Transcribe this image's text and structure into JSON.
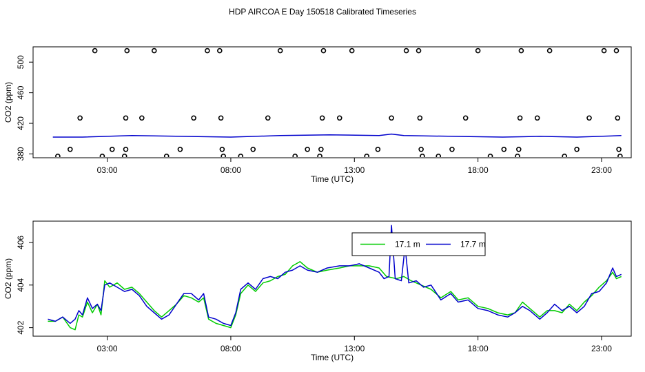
{
  "title": "HDP AIRCOA E  Day 150518  Calibrated Timeseries",
  "colors": {
    "green": "#00cc00",
    "blue": "#0000cc",
    "axis": "#000000"
  },
  "chart_data": [
    {
      "type": "scatter",
      "xlabel": "Time (UTC)",
      "ylabel": "CO2 (ppm)",
      "xlim": [
        0,
        24.2
      ],
      "ylim": [
        375,
        520
      ],
      "x_ticks": [
        3,
        8,
        13,
        18,
        23
      ],
      "x_tick_labels": [
        "03:00",
        "08:00",
        "13:00",
        "18:00",
        "23:00"
      ],
      "y_ticks": [
        380,
        420,
        460,
        500
      ],
      "y_tick_labels": [
        "380",
        "420",
        "460",
        "500"
      ],
      "series": [
        {
          "style": "points-open-circle",
          "points": [
            [
              1.0,
              377
            ],
            [
              1.5,
              386
            ],
            [
              1.9,
              427
            ],
            [
              2.5,
              515
            ],
            [
              2.8,
              377
            ],
            [
              3.2,
              386
            ],
            [
              3.7,
              377
            ],
            [
              3.75,
              386
            ],
            [
              3.75,
              427
            ],
            [
              3.8,
              515
            ],
            [
              4.4,
              427
            ],
            [
              4.9,
              515
            ],
            [
              5.4,
              377
            ],
            [
              5.95,
              386
            ],
            [
              6.5,
              427
            ],
            [
              7.05,
              515
            ],
            [
              7.55,
              515
            ],
            [
              7.6,
              427
            ],
            [
              7.65,
              386
            ],
            [
              7.7,
              377
            ],
            [
              8.4,
              377
            ],
            [
              8.9,
              386
            ],
            [
              9.5,
              427
            ],
            [
              10.0,
              515
            ],
            [
              10.6,
              377
            ],
            [
              11.1,
              386
            ],
            [
              11.6,
              377
            ],
            [
              11.65,
              386
            ],
            [
              11.7,
              427
            ],
            [
              11.75,
              515
            ],
            [
              12.4,
              427
            ],
            [
              12.9,
              515
            ],
            [
              13.5,
              377
            ],
            [
              13.95,
              386
            ],
            [
              14.5,
              427
            ],
            [
              15.1,
              515
            ],
            [
              15.6,
              515
            ],
            [
              15.65,
              427
            ],
            [
              15.7,
              386
            ],
            [
              15.75,
              377
            ],
            [
              16.4,
              377
            ],
            [
              16.95,
              386
            ],
            [
              17.5,
              427
            ],
            [
              18.0,
              515
            ],
            [
              18.5,
              377
            ],
            [
              19.05,
              386
            ],
            [
              19.6,
              377
            ],
            [
              19.65,
              386
            ],
            [
              19.7,
              427
            ],
            [
              19.75,
              515
            ],
            [
              20.4,
              427
            ],
            [
              20.9,
              515
            ],
            [
              21.5,
              377
            ],
            [
              22.0,
              386
            ],
            [
              22.5,
              427
            ],
            [
              23.1,
              515
            ],
            [
              23.6,
              515
            ],
            [
              23.65,
              427
            ],
            [
              23.7,
              386
            ],
            [
              23.75,
              377
            ]
          ]
        },
        {
          "style": "line",
          "color": "#0000cc",
          "points": [
            [
              0.8,
              402
            ],
            [
              2,
              402
            ],
            [
              4,
              404
            ],
            [
              6,
              403
            ],
            [
              8,
              402
            ],
            [
              10,
              404
            ],
            [
              12,
              405
            ],
            [
              14,
              404
            ],
            [
              14.5,
              406
            ],
            [
              15,
              404
            ],
            [
              17,
              403
            ],
            [
              19,
              402
            ],
            [
              20.5,
              403
            ],
            [
              22,
              402
            ],
            [
              23.8,
              404
            ]
          ]
        }
      ]
    },
    {
      "type": "line",
      "xlabel": "Time (UTC)",
      "ylabel": "CO2 (ppm)",
      "xlim": [
        0,
        24.2
      ],
      "ylim": [
        401.6,
        407.0
      ],
      "x_ticks": [
        3,
        8,
        13,
        18,
        23
      ],
      "x_tick_labels": [
        "03:00",
        "08:00",
        "13:00",
        "18:00",
        "23:00"
      ],
      "y_ticks": [
        402,
        404,
        406
      ],
      "y_tick_labels": [
        "402",
        "404",
        "406"
      ],
      "legend": {
        "placement": "top-center",
        "entries": [
          "17.1 m",
          "17.7 m"
        ]
      },
      "series": [
        {
          "name": "17.1 m",
          "color": "#00cc00",
          "points": [
            [
              0.6,
              402.3
            ],
            [
              0.9,
              402.3
            ],
            [
              1.2,
              402.5
            ],
            [
              1.5,
              402.0
            ],
            [
              1.7,
              401.9
            ],
            [
              1.85,
              402.6
            ],
            [
              2.0,
              402.5
            ],
            [
              2.2,
              403.2
            ],
            [
              2.4,
              402.7
            ],
            [
              2.6,
              403.1
            ],
            [
              2.75,
              402.6
            ],
            [
              2.9,
              404.2
            ],
            [
              3.1,
              403.9
            ],
            [
              3.4,
              404.1
            ],
            [
              3.7,
              403.8
            ],
            [
              4.0,
              403.9
            ],
            [
              4.3,
              403.6
            ],
            [
              4.6,
              403.2
            ],
            [
              4.9,
              402.8
            ],
            [
              5.2,
              402.5
            ],
            [
              5.5,
              402.8
            ],
            [
              5.8,
              403.1
            ],
            [
              6.1,
              403.5
            ],
            [
              6.4,
              403.4
            ],
            [
              6.7,
              403.2
            ],
            [
              6.9,
              403.4
            ],
            [
              7.1,
              402.4
            ],
            [
              7.4,
              402.2
            ],
            [
              7.7,
              402.1
            ],
            [
              8.0,
              402.0
            ],
            [
              8.2,
              402.6
            ],
            [
              8.4,
              403.6
            ],
            [
              8.7,
              404.0
            ],
            [
              9.0,
              403.7
            ],
            [
              9.3,
              404.1
            ],
            [
              9.6,
              404.2
            ],
            [
              9.9,
              404.4
            ],
            [
              10.2,
              404.5
            ],
            [
              10.5,
              404.9
            ],
            [
              10.8,
              405.1
            ],
            [
              11.1,
              404.8
            ],
            [
              11.5,
              404.6
            ],
            [
              11.9,
              404.7
            ],
            [
              12.4,
              404.8
            ],
            [
              12.8,
              404.9
            ],
            [
              13.2,
              404.9
            ],
            [
              13.6,
              404.9
            ],
            [
              14.0,
              404.8
            ],
            [
              14.3,
              404.4
            ],
            [
              14.7,
              404.3
            ],
            [
              15.0,
              404.4
            ],
            [
              15.3,
              404.2
            ],
            [
              15.7,
              404.0
            ],
            [
              16.1,
              403.8
            ],
            [
              16.5,
              403.4
            ],
            [
              16.9,
              403.7
            ],
            [
              17.2,
              403.3
            ],
            [
              17.6,
              403.4
            ],
            [
              18.0,
              403.0
            ],
            [
              18.4,
              402.9
            ],
            [
              18.8,
              402.7
            ],
            [
              19.2,
              402.6
            ],
            [
              19.5,
              402.7
            ],
            [
              19.8,
              403.2
            ],
            [
              20.1,
              402.9
            ],
            [
              20.5,
              402.5
            ],
            [
              20.8,
              402.8
            ],
            [
              21.1,
              402.8
            ],
            [
              21.4,
              402.7
            ],
            [
              21.7,
              403.1
            ],
            [
              22.0,
              402.8
            ],
            [
              22.3,
              403.2
            ],
            [
              22.6,
              403.5
            ],
            [
              22.9,
              403.9
            ],
            [
              23.2,
              404.2
            ],
            [
              23.45,
              404.6
            ],
            [
              23.6,
              404.3
            ],
            [
              23.8,
              404.4
            ]
          ]
        },
        {
          "name": "17.7 m",
          "color": "#0000cc",
          "points": [
            [
              0.6,
              402.4
            ],
            [
              0.9,
              402.3
            ],
            [
              1.2,
              402.5
            ],
            [
              1.5,
              402.2
            ],
            [
              1.7,
              402.4
            ],
            [
              1.85,
              402.8
            ],
            [
              2.0,
              402.6
            ],
            [
              2.2,
              403.4
            ],
            [
              2.4,
              402.9
            ],
            [
              2.6,
              403.1
            ],
            [
              2.75,
              402.8
            ],
            [
              2.9,
              404.0
            ],
            [
              3.1,
              404.1
            ],
            [
              3.4,
              403.9
            ],
            [
              3.7,
              403.7
            ],
            [
              4.0,
              403.8
            ],
            [
              4.3,
              403.5
            ],
            [
              4.6,
              403.0
            ],
            [
              4.9,
              402.7
            ],
            [
              5.2,
              402.4
            ],
            [
              5.5,
              402.6
            ],
            [
              5.8,
              403.1
            ],
            [
              6.1,
              403.6
            ],
            [
              6.4,
              403.6
            ],
            [
              6.7,
              403.3
            ],
            [
              6.9,
              403.6
            ],
            [
              7.1,
              402.5
            ],
            [
              7.4,
              402.4
            ],
            [
              7.7,
              402.2
            ],
            [
              8.0,
              402.1
            ],
            [
              8.2,
              402.7
            ],
            [
              8.4,
              403.8
            ],
            [
              8.7,
              404.1
            ],
            [
              9.0,
              403.8
            ],
            [
              9.3,
              404.3
            ],
            [
              9.6,
              404.4
            ],
            [
              9.9,
              404.3
            ],
            [
              10.2,
              404.6
            ],
            [
              10.5,
              404.7
            ],
            [
              10.8,
              404.9
            ],
            [
              11.1,
              404.7
            ],
            [
              11.5,
              404.6
            ],
            [
              11.9,
              404.8
            ],
            [
              12.4,
              404.9
            ],
            [
              12.8,
              404.9
            ],
            [
              13.2,
              405.0
            ],
            [
              13.6,
              404.8
            ],
            [
              14.0,
              404.6
            ],
            [
              14.2,
              404.3
            ],
            [
              14.4,
              404.4
            ],
            [
              14.5,
              406.8
            ],
            [
              14.65,
              404.3
            ],
            [
              14.9,
              404.2
            ],
            [
              15.05,
              405.8
            ],
            [
              15.2,
              404.1
            ],
            [
              15.5,
              404.2
            ],
            [
              15.8,
              403.9
            ],
            [
              16.1,
              404.0
            ],
            [
              16.5,
              403.3
            ],
            [
              16.9,
              403.6
            ],
            [
              17.2,
              403.2
            ],
            [
              17.6,
              403.3
            ],
            [
              18.0,
              402.9
            ],
            [
              18.4,
              402.8
            ],
            [
              18.8,
              402.6
            ],
            [
              19.2,
              402.5
            ],
            [
              19.5,
              402.7
            ],
            [
              19.8,
              403.0
            ],
            [
              20.1,
              402.8
            ],
            [
              20.5,
              402.4
            ],
            [
              20.8,
              402.7
            ],
            [
              21.1,
              403.1
            ],
            [
              21.4,
              402.8
            ],
            [
              21.7,
              403.0
            ],
            [
              22.0,
              402.7
            ],
            [
              22.3,
              403.0
            ],
            [
              22.6,
              403.6
            ],
            [
              22.9,
              403.7
            ],
            [
              23.2,
              404.1
            ],
            [
              23.45,
              404.8
            ],
            [
              23.6,
              404.4
            ],
            [
              23.8,
              404.5
            ]
          ]
        }
      ]
    }
  ]
}
